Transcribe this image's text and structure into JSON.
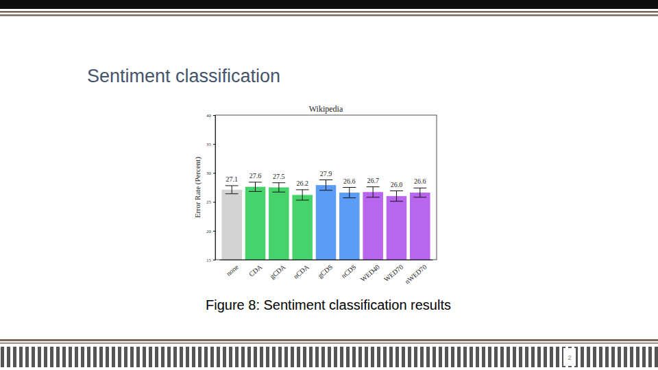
{
  "slide": {
    "heading": "Sentiment classification",
    "caption": "Figure 8: Sentiment classification results",
    "page_number": "2"
  },
  "chart_data": {
    "type": "bar",
    "title": "Wikipedia",
    "y_label": "Error Rate (Percent)",
    "categories": [
      "none",
      "CDA",
      "gCDA",
      "nCDA",
      "gCDS",
      "nCDS",
      "WED40",
      "WED70",
      "nWED70"
    ],
    "values": [
      27.1,
      27.6,
      27.5,
      26.2,
      27.9,
      26.6,
      26.7,
      26.0,
      26.6
    ],
    "value_labels": [
      "27.1",
      "27.6",
      "27.5",
      "26.2",
      "27.9",
      "26.6",
      "26.7",
      "26.0",
      "26.6"
    ],
    "errors": [
      0.7,
      0.8,
      0.8,
      0.9,
      0.9,
      0.9,
      0.9,
      0.9,
      0.8
    ],
    "colors": [
      "#d3d3d3",
      "#46d36c",
      "#46d36c",
      "#46d36c",
      "#5b9cf6",
      "#5b9cf6",
      "#b866ee",
      "#b866ee",
      "#b866ee"
    ],
    "ylim": [
      15,
      40
    ],
    "yticks": [
      15,
      20,
      25,
      30,
      35,
      40
    ],
    "data_labels": true
  }
}
